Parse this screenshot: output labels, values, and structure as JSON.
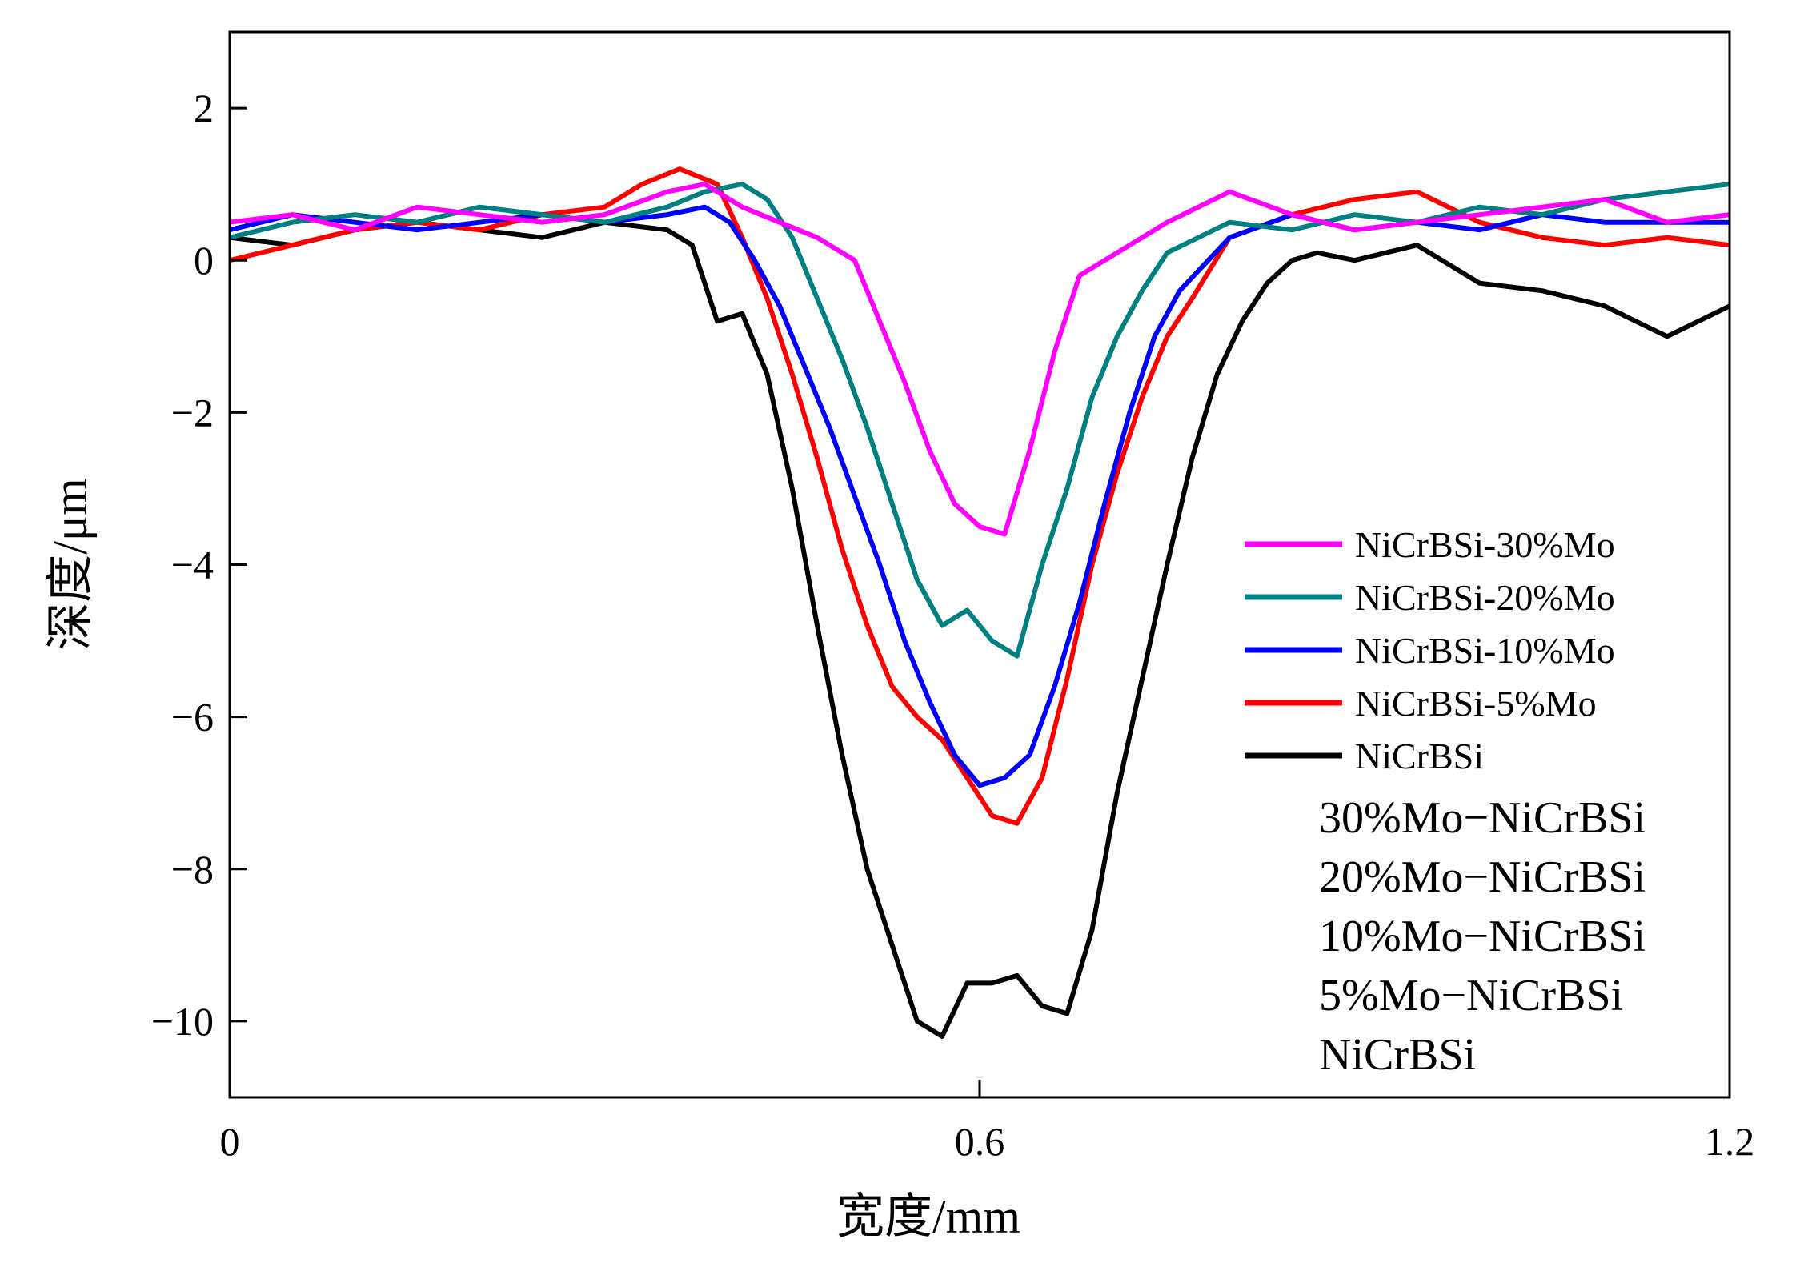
{
  "chart_data": {
    "type": "line",
    "xlabel": "宽度/mm",
    "ylabel": "深度/μm",
    "xlim": [
      0,
      1.2
    ],
    "ylim": [
      -11,
      3
    ],
    "xticks": [
      0,
      0.6,
      1.2
    ],
    "xtick_labels": [
      "0",
      "0.6",
      "1.2"
    ],
    "yticks": [
      2,
      0,
      -2,
      -4,
      -6,
      -8,
      -10
    ],
    "ytick_labels": [
      "2",
      "0",
      "−2",
      "−4",
      "−6",
      "−8",
      "−10"
    ],
    "grid": false,
    "legend_position": "right",
    "series": [
      {
        "name": "NiCrBSi-30%Mo",
        "color": "#ff00ff",
        "x": [
          0.0,
          0.05,
          0.1,
          0.15,
          0.2,
          0.25,
          0.3,
          0.35,
          0.38,
          0.41,
          0.44,
          0.47,
          0.5,
          0.52,
          0.54,
          0.56,
          0.58,
          0.6,
          0.62,
          0.64,
          0.66,
          0.68,
          0.7,
          0.72,
          0.75,
          0.8,
          0.85,
          0.9,
          0.95,
          1.0,
          1.05,
          1.1,
          1.15,
          1.2
        ],
        "y": [
          0.5,
          0.6,
          0.4,
          0.7,
          0.6,
          0.5,
          0.6,
          0.9,
          1.0,
          0.7,
          0.5,
          0.3,
          0.0,
          -0.8,
          -1.6,
          -2.5,
          -3.2,
          -3.5,
          -3.6,
          -2.5,
          -1.2,
          -0.2,
          0.0,
          0.2,
          0.5,
          0.9,
          0.6,
          0.4,
          0.5,
          0.6,
          0.7,
          0.8,
          0.5,
          0.6
        ]
      },
      {
        "name": "NiCrBSi-20%Mo",
        "color": "#008080",
        "x": [
          0.0,
          0.05,
          0.1,
          0.15,
          0.2,
          0.25,
          0.3,
          0.35,
          0.38,
          0.41,
          0.43,
          0.45,
          0.47,
          0.49,
          0.51,
          0.53,
          0.55,
          0.57,
          0.59,
          0.61,
          0.63,
          0.65,
          0.67,
          0.69,
          0.71,
          0.73,
          0.75,
          0.8,
          0.85,
          0.9,
          0.95,
          1.0,
          1.05,
          1.1,
          1.15,
          1.2
        ],
        "y": [
          0.3,
          0.5,
          0.6,
          0.5,
          0.7,
          0.6,
          0.5,
          0.7,
          0.9,
          1.0,
          0.8,
          0.3,
          -0.5,
          -1.3,
          -2.2,
          -3.2,
          -4.2,
          -4.8,
          -4.6,
          -5.0,
          -5.2,
          -4.0,
          -3.0,
          -1.8,
          -1.0,
          -0.4,
          0.1,
          0.5,
          0.4,
          0.6,
          0.5,
          0.7,
          0.6,
          0.8,
          0.9,
          1.0
        ]
      },
      {
        "name": "NiCrBSi-10%Mo",
        "color": "#0000ff",
        "x": [
          0.0,
          0.05,
          0.1,
          0.15,
          0.2,
          0.25,
          0.3,
          0.35,
          0.38,
          0.4,
          0.42,
          0.44,
          0.46,
          0.48,
          0.5,
          0.52,
          0.54,
          0.56,
          0.58,
          0.6,
          0.62,
          0.64,
          0.66,
          0.68,
          0.7,
          0.72,
          0.74,
          0.76,
          0.8,
          0.85,
          0.9,
          0.95,
          1.0,
          1.05,
          1.1,
          1.15,
          1.2
        ],
        "y": [
          0.4,
          0.6,
          0.5,
          0.4,
          0.5,
          0.6,
          0.5,
          0.6,
          0.7,
          0.5,
          0.0,
          -0.6,
          -1.4,
          -2.2,
          -3.1,
          -4.0,
          -5.0,
          -5.8,
          -6.5,
          -6.9,
          -6.8,
          -6.5,
          -5.6,
          -4.5,
          -3.2,
          -2.0,
          -1.0,
          -0.4,
          0.3,
          0.6,
          0.4,
          0.5,
          0.4,
          0.6,
          0.5,
          0.5,
          0.5
        ]
      },
      {
        "name": "NiCrBSi-5%Mo",
        "color": "#ff0000",
        "x": [
          0.0,
          0.05,
          0.1,
          0.15,
          0.2,
          0.25,
          0.3,
          0.33,
          0.36,
          0.39,
          0.41,
          0.43,
          0.45,
          0.47,
          0.49,
          0.51,
          0.53,
          0.55,
          0.57,
          0.59,
          0.61,
          0.63,
          0.65,
          0.67,
          0.69,
          0.71,
          0.73,
          0.75,
          0.77,
          0.8,
          0.85,
          0.9,
          0.95,
          1.0,
          1.05,
          1.1,
          1.15,
          1.2
        ],
        "y": [
          0.0,
          0.2,
          0.4,
          0.5,
          0.4,
          0.6,
          0.7,
          1.0,
          1.2,
          1.0,
          0.3,
          -0.5,
          -1.5,
          -2.6,
          -3.8,
          -4.8,
          -5.6,
          -6.0,
          -6.3,
          -6.8,
          -7.3,
          -7.4,
          -6.8,
          -5.5,
          -4.0,
          -2.8,
          -1.8,
          -1.0,
          -0.5,
          0.3,
          0.6,
          0.8,
          0.9,
          0.5,
          0.3,
          0.2,
          0.3,
          0.2
        ]
      },
      {
        "name": "NiCrBSi",
        "color": "#000000",
        "x": [
          0.0,
          0.05,
          0.1,
          0.15,
          0.2,
          0.25,
          0.3,
          0.35,
          0.37,
          0.39,
          0.41,
          0.43,
          0.45,
          0.47,
          0.49,
          0.51,
          0.53,
          0.55,
          0.57,
          0.59,
          0.61,
          0.63,
          0.65,
          0.67,
          0.69,
          0.71,
          0.73,
          0.75,
          0.77,
          0.79,
          0.81,
          0.83,
          0.85,
          0.87,
          0.9,
          0.95,
          1.0,
          1.05,
          1.1,
          1.15,
          1.2
        ],
        "y": [
          0.3,
          0.2,
          0.4,
          0.5,
          0.4,
          0.3,
          0.5,
          0.4,
          0.2,
          -0.8,
          -0.7,
          -1.5,
          -3.0,
          -4.8,
          -6.5,
          -8.0,
          -9.0,
          -10.0,
          -10.2,
          -9.5,
          -9.5,
          -9.4,
          -9.8,
          -9.9,
          -8.8,
          -7.0,
          -5.5,
          -4.0,
          -2.6,
          -1.5,
          -0.8,
          -0.3,
          0.0,
          0.1,
          0.0,
          0.2,
          -0.3,
          -0.4,
          -0.6,
          -1.0,
          -0.6
        ]
      }
    ],
    "annotations": [
      "30%Mo−NiCrBSi",
      "20%Mo−NiCrBSi",
      "10%Mo−NiCrBSi",
      "5%Mo−NiCrBSi",
      "NiCrBSi"
    ]
  }
}
